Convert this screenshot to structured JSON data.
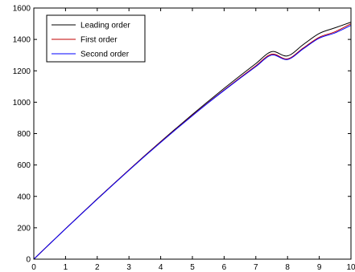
{
  "chart_data": {
    "type": "line",
    "title": "",
    "xlabel": "",
    "ylabel": "",
    "xlim": [
      0,
      10
    ],
    "ylim": [
      0,
      1600
    ],
    "xticks": [
      0,
      1,
      2,
      3,
      4,
      5,
      6,
      7,
      8,
      9,
      10
    ],
    "yticks": [
      0,
      200,
      400,
      600,
      800,
      1000,
      1200,
      1400,
      1600
    ],
    "grid": false,
    "legend_position": "top-left",
    "x": [
      0,
      0.5,
      1,
      1.5,
      2,
      2.5,
      3,
      3.5,
      4,
      4.5,
      5,
      5.5,
      6,
      6.5,
      7,
      7.5,
      8,
      8.5,
      9,
      9.5,
      10
    ],
    "series": [
      {
        "name": "Leading order",
        "color": "#000000",
        "values": [
          0,
          97,
          194,
          289,
          384,
          477,
          569,
          660,
          749,
          836,
          922,
          1006,
          1088,
          1168,
          1246,
          1322,
          1295,
          1368,
          1438,
          1474,
          1510
        ]
      },
      {
        "name": "First order",
        "color": "#c00000",
        "values": [
          0,
          97,
          194,
          289,
          383,
          476,
          568,
          658,
          746,
          832,
          916,
          998,
          1078,
          1156,
          1232,
          1306,
          1276,
          1346,
          1414,
          1449,
          1500
        ]
      },
      {
        "name": "Second order",
        "color": "#0000ff",
        "values": [
          0,
          97,
          193,
          288,
          382,
          475,
          566,
          656,
          744,
          830,
          914,
          996,
          1075,
          1152,
          1227,
          1300,
          1272,
          1341,
          1408,
          1442,
          1490
        ]
      }
    ]
  }
}
